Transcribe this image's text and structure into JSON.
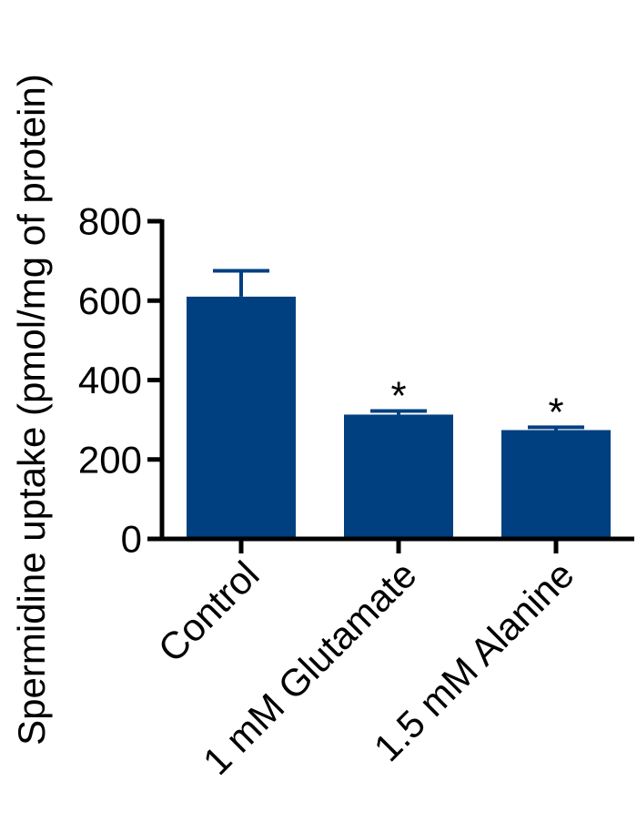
{
  "chart_data": {
    "type": "bar",
    "title": "",
    "xlabel": "",
    "ylabel": "Spermidine uptake (pmol/mg of protein)",
    "ylim": [
      0,
      800
    ],
    "yticks": [
      "0",
      "200",
      "400",
      "600",
      "800"
    ],
    "categories": [
      "Control",
      "1 mM Glutamate",
      "1.5 mM Alanine"
    ],
    "values": [
      610,
      313,
      274
    ],
    "errors": [
      65,
      9,
      7
    ],
    "annotations": [
      "",
      "*",
      "*"
    ],
    "bar_color": "#004080",
    "grid": false,
    "legend": "none"
  }
}
